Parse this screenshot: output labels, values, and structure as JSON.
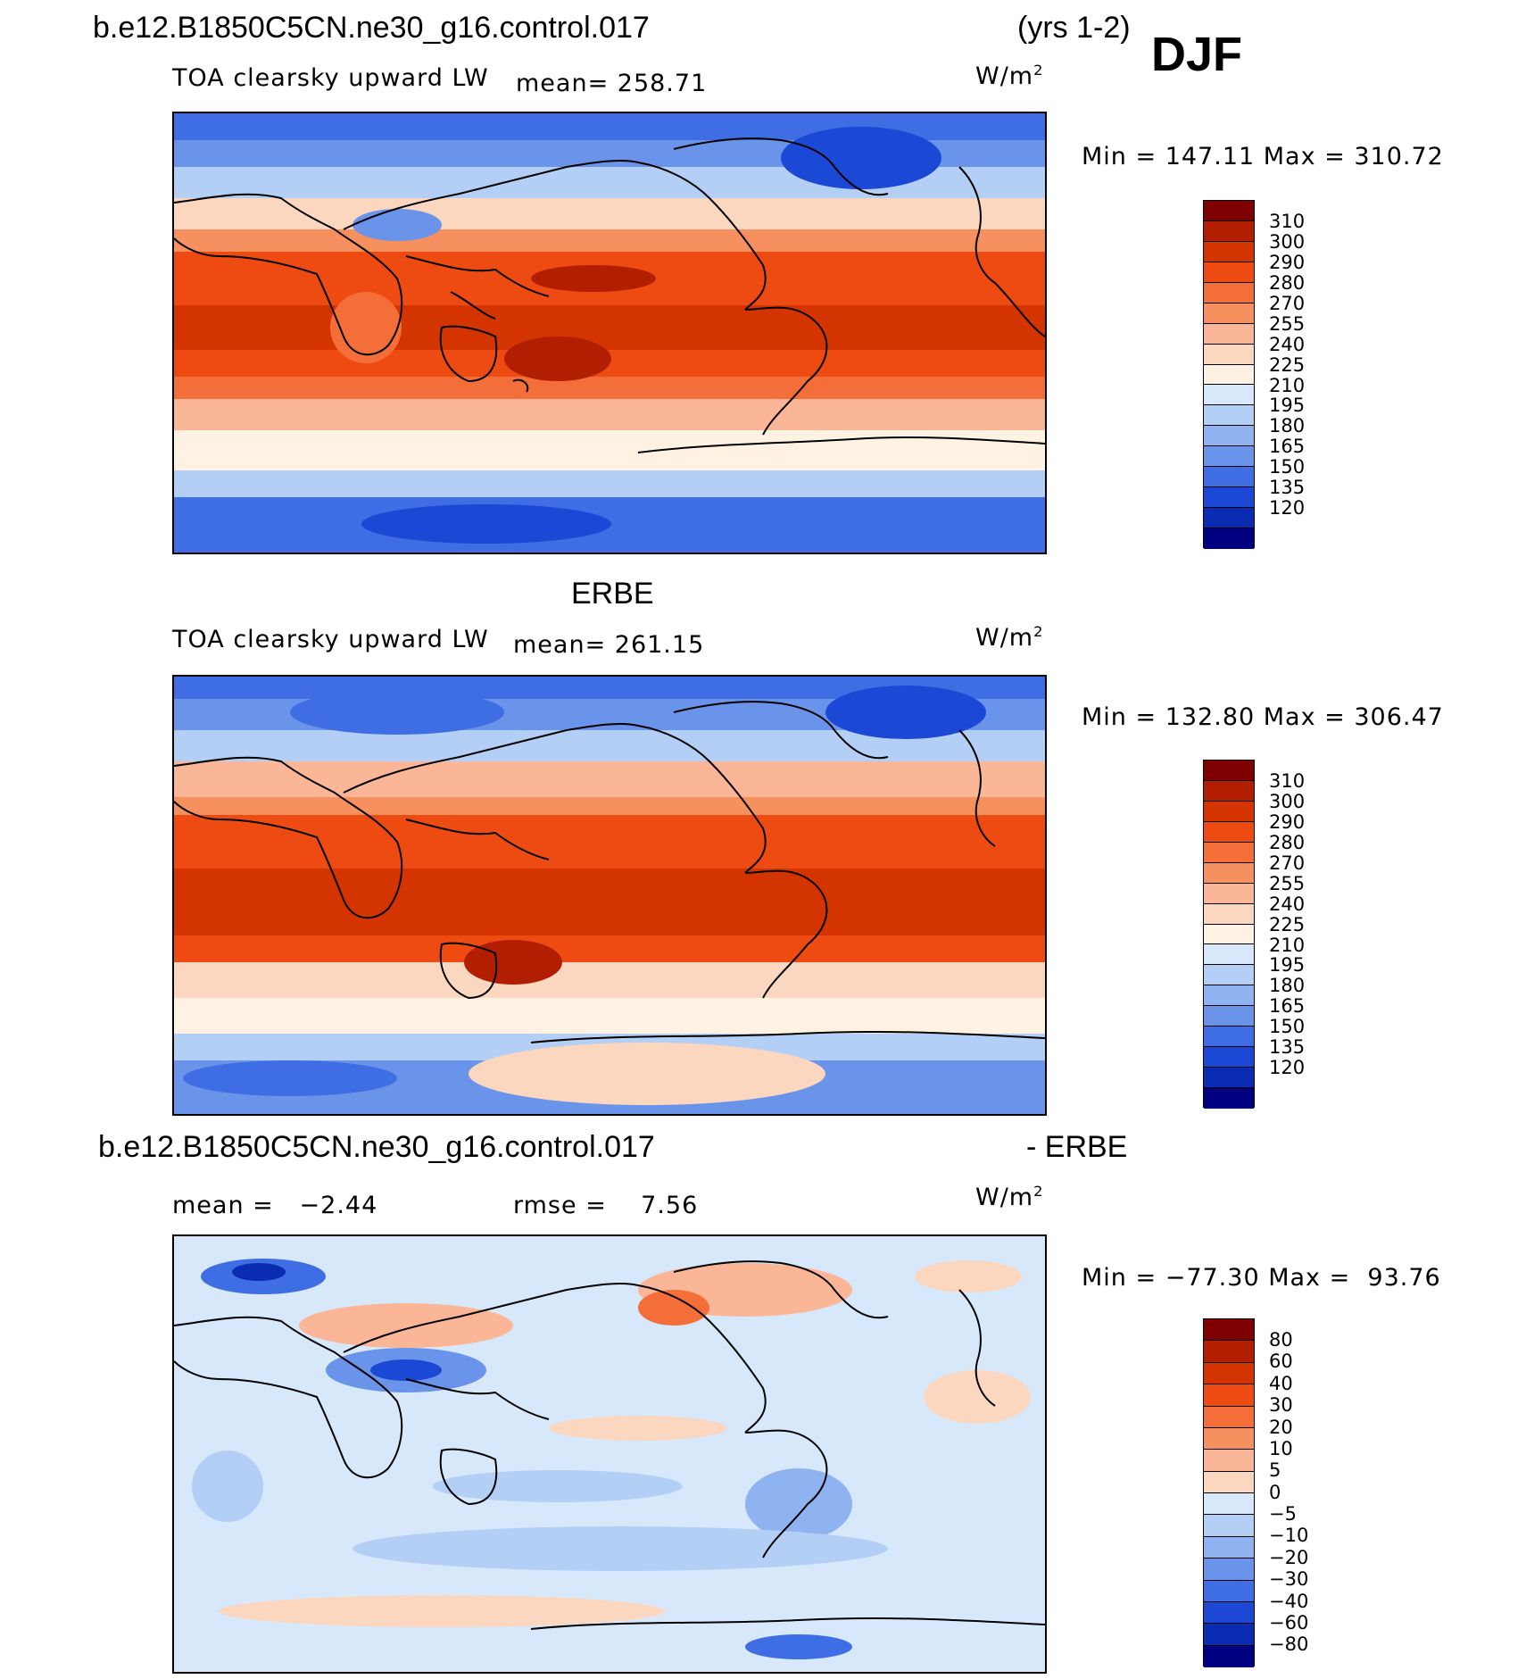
{
  "header": {
    "case_name": "b.e12.B1850C5CN.ne30_g16.control.017",
    "years": "(yrs 1-2)",
    "season": "DJF"
  },
  "panels": [
    {
      "id": "model",
      "heading": "",
      "variable": "TOA clearsky upward LW",
      "mean_text": "mean= 258.71",
      "units": "W/m",
      "units_sup": "2",
      "minmax": "Min = 147.11 Max = 310.72"
    },
    {
      "id": "obs",
      "heading": "ERBE",
      "variable": "TOA clearsky upward LW",
      "mean_text": "mean= 261.15",
      "units": "W/m",
      "units_sup": "2",
      "minmax": "Min = 132.80 Max = 306.47"
    },
    {
      "id": "diff",
      "heading_left": "b.e12.B1850C5CN.ne30_g16.control.017",
      "heading_right": "- ERBE",
      "mean_text": "mean =   −2.44",
      "rmse_text": "rmse =    7.56",
      "units": "W/m",
      "units_sup": "2",
      "minmax": "Min = −77.30 Max =  93.76"
    }
  ],
  "colorbars": {
    "field": {
      "labels": [
        "310",
        "300",
        "290",
        "280",
        "270",
        "255",
        "240",
        "225",
        "210",
        "195",
        "180",
        "165",
        "150",
        "135",
        "120"
      ],
      "colors": [
        "#7f0000",
        "#b21e00",
        "#d43500",
        "#ee4b12",
        "#f46e3a",
        "#f7905f",
        "#fbb697",
        "#fcd7bf",
        "#fff2e3",
        "#d8e8fb",
        "#b3cff6",
        "#8fb3f1",
        "#6a93ea",
        "#3f6ee4",
        "#1c48d6",
        "#0a2cb3",
        "#000080"
      ]
    },
    "diff": {
      "labels": [
        "80",
        "60",
        "40",
        "30",
        "20",
        "10",
        "5",
        "0",
        "−5",
        "−10",
        "−20",
        "−30",
        "−40",
        "−60",
        "−80"
      ],
      "colors": [
        "#7f0000",
        "#b21e00",
        "#d43500",
        "#ee4b12",
        "#f46e3a",
        "#f7905f",
        "#fbb697",
        "#fcd7bf",
        "#d8e8fb",
        "#b3cff6",
        "#8fb3f1",
        "#6a93ea",
        "#3f6ee4",
        "#1c48d6",
        "#0a2cb3",
        "#000080"
      ]
    }
  }
}
